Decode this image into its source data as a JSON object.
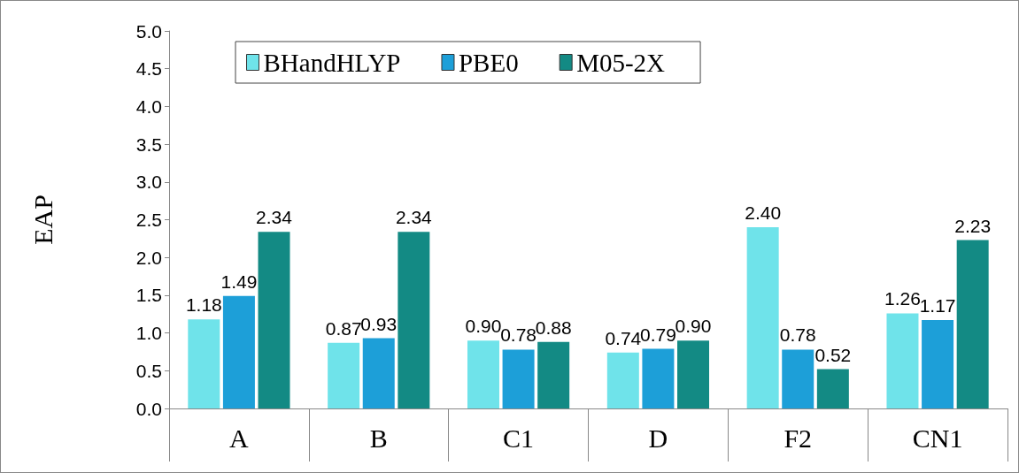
{
  "chart_data": {
    "type": "bar",
    "ylabel": "EAP",
    "categories": [
      "A",
      "B",
      "C1",
      "D",
      "F2",
      "CN1"
    ],
    "series": [
      {
        "name": "BHandHLYP",
        "color": "#6fe3ea",
        "values": [
          1.18,
          0.87,
          0.9,
          0.74,
          2.4,
          1.26
        ],
        "value_labels": [
          "1.18",
          "0.87",
          "0.90",
          "0.74",
          "2.40",
          "1.26"
        ]
      },
      {
        "name": "PBE0",
        "color": "#1d9fd8",
        "values": [
          1.49,
          0.93,
          0.78,
          0.79,
          0.78,
          1.17
        ],
        "value_labels": [
          "1.49",
          "0.93",
          "0.78",
          "0.79",
          "0.78",
          "1.17"
        ]
      },
      {
        "name": "M05-2X",
        "color": "#138a84",
        "values": [
          2.34,
          2.34,
          0.88,
          0.9,
          0.52,
          2.23
        ],
        "value_labels": [
          "2.34",
          "2.34",
          "0.88",
          "0.90",
          "0.52",
          "2.23"
        ]
      }
    ],
    "ylim": [
      0,
      5
    ],
    "yticks": [
      {
        "value": 0,
        "label": "0.0"
      },
      {
        "value": 0.5,
        "label": "0.5"
      },
      {
        "value": 1,
        "label": "1.0"
      },
      {
        "value": 1.5,
        "label": "1.5"
      },
      {
        "value": 2,
        "label": "2.0"
      },
      {
        "value": 2.5,
        "label": "2.5"
      },
      {
        "value": 3,
        "label": "3.0"
      },
      {
        "value": 3.5,
        "label": "3.5"
      },
      {
        "value": 4,
        "label": "4.0"
      },
      {
        "value": 4.5,
        "label": "4.5"
      },
      {
        "value": 5,
        "label": "5.0"
      }
    ],
    "grid": false,
    "legend": "top"
  }
}
